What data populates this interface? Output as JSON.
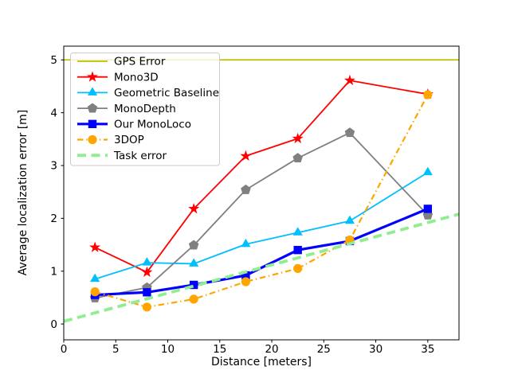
{
  "chart_data": {
    "type": "line",
    "title": "",
    "xlabel": "Distance [meters]",
    "ylabel": "Average localization error [m]",
    "xlim": [
      0,
      38
    ],
    "ylim": [
      -0.3,
      5.26
    ],
    "xticks": [
      0,
      5,
      10,
      15,
      20,
      25,
      30,
      35
    ],
    "yticks": [
      0,
      1,
      2,
      3,
      4,
      5
    ],
    "grid": false,
    "legend_position": "upper left",
    "background_color": "#ffffff",
    "spine_color": "#000000",
    "series": [
      {
        "id": "gps-error",
        "name": "GPS Error",
        "color": "#bfbf00",
        "style": "solid",
        "marker": "none",
        "width": 1.8,
        "x": [
          0,
          38
        ],
        "y": [
          5.0,
          5.0
        ]
      },
      {
        "id": "mono3d",
        "name": "Mono3D",
        "color": "#ff0000",
        "style": "solid",
        "marker": "star",
        "width": 1.8,
        "x": [
          3,
          8,
          12.5,
          17.5,
          22.5,
          27.5,
          35
        ],
        "y": [
          1.45,
          0.98,
          2.18,
          3.18,
          3.51,
          4.61,
          4.35
        ]
      },
      {
        "id": "geometric-baseline",
        "name": "Geometric Baseline",
        "color": "#00bfff",
        "style": "solid",
        "marker": "triangle",
        "width": 1.8,
        "x": [
          3,
          8,
          12.5,
          17.5,
          22.5,
          27.5,
          35
        ],
        "y": [
          0.85,
          1.16,
          1.14,
          1.51,
          1.73,
          1.95,
          2.87
        ]
      },
      {
        "id": "monodepth",
        "name": "MonoDepth",
        "color": "#808080",
        "style": "solid",
        "marker": "pentagon",
        "width": 1.8,
        "x": [
          3,
          8,
          12.5,
          17.5,
          22.5,
          27.5,
          35
        ],
        "y": [
          0.49,
          0.69,
          1.49,
          2.54,
          3.14,
          3.62,
          2.06
        ]
      },
      {
        "id": "our-monoloco",
        "name": "Our MonoLoco",
        "color": "#0000ff",
        "style": "solid",
        "marker": "square",
        "width": 3.2,
        "x": [
          3,
          8,
          12.5,
          17.5,
          22.5,
          27.5,
          35
        ],
        "y": [
          0.55,
          0.6,
          0.74,
          0.92,
          1.4,
          1.57,
          2.18
        ]
      },
      {
        "id": "3dop",
        "name": "3DOP",
        "color": "#ffa500",
        "style": "dashdot",
        "marker": "circle",
        "width": 2.2,
        "x": [
          3,
          8,
          12.5,
          17.5,
          22.5,
          27.5,
          35
        ],
        "y": [
          0.61,
          0.32,
          0.47,
          0.8,
          1.05,
          1.59,
          4.34
        ]
      },
      {
        "id": "task-error",
        "name": "Task error",
        "color": "#90ee90",
        "style": "dashed",
        "marker": "none",
        "width": 3.8,
        "x": [
          0,
          38
        ],
        "y": [
          0.05,
          2.08
        ]
      }
    ]
  }
}
